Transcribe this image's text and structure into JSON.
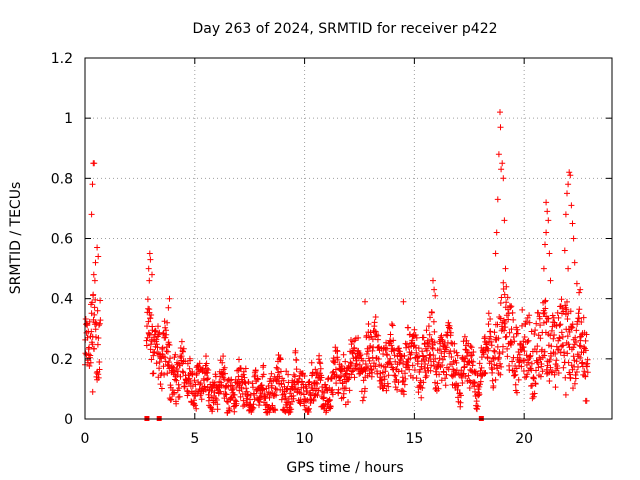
{
  "chart_data": {
    "type": "scatter",
    "title": "Day 263 of 2024, SRMTID for receiver p422",
    "xlabel": "GPS time / hours",
    "ylabel": "SRMTID / TECUs",
    "xlim": [
      0,
      24
    ],
    "ylim": [
      0,
      1.2
    ],
    "x_ticks": [
      0,
      5,
      10,
      15,
      20
    ],
    "x_tick_labels": [
      "0",
      "5",
      "10",
      "15",
      "20"
    ],
    "y_ticks": [
      0,
      0.2,
      0.4,
      0.6,
      0.8,
      1.0,
      1.2
    ],
    "y_tick_labels": [
      "0",
      "0.2",
      "0.4",
      "0.6",
      "0.8",
      "1",
      "1.2"
    ],
    "grid": true,
    "marker": "+",
    "color": "#ff0000",
    "series": [
      {
        "name": "SRMTID",
        "envelope": [
          {
            "t": 0.0,
            "level": 0.22,
            "spread": 0.09
          },
          {
            "t": 0.5,
            "level": 0.3,
            "spread": 0.12
          },
          {
            "t": 3.0,
            "level": 0.28,
            "spread": 0.09
          },
          {
            "t": 3.5,
            "level": 0.2,
            "spread": 0.1
          },
          {
            "t": 4.5,
            "level": 0.14,
            "spread": 0.07
          },
          {
            "t": 5.5,
            "level": 0.11,
            "spread": 0.06
          },
          {
            "t": 6.5,
            "level": 0.1,
            "spread": 0.06
          },
          {
            "t": 8.0,
            "level": 0.09,
            "spread": 0.06
          },
          {
            "t": 9.5,
            "level": 0.11,
            "spread": 0.07
          },
          {
            "t": 11.0,
            "level": 0.1,
            "spread": 0.06
          },
          {
            "t": 12.0,
            "level": 0.16,
            "spread": 0.08
          },
          {
            "t": 13.0,
            "level": 0.22,
            "spread": 0.09
          },
          {
            "t": 14.0,
            "level": 0.18,
            "spread": 0.08
          },
          {
            "t": 15.0,
            "level": 0.2,
            "spread": 0.08
          },
          {
            "t": 16.0,
            "level": 0.22,
            "spread": 0.1
          },
          {
            "t": 17.0,
            "level": 0.17,
            "spread": 0.08
          },
          {
            "t": 18.0,
            "level": 0.16,
            "spread": 0.07
          },
          {
            "t": 19.0,
            "level": 0.3,
            "spread": 0.13
          },
          {
            "t": 20.0,
            "level": 0.22,
            "spread": 0.1
          },
          {
            "t": 21.0,
            "level": 0.24,
            "spread": 0.12
          },
          {
            "t": 22.0,
            "level": 0.28,
            "spread": 0.14
          },
          {
            "t": 23.0,
            "level": 0.18,
            "spread": 0.09
          }
        ],
        "gaps": [
          [
            0.7,
            2.8
          ],
          [
            22.9,
            24.0
          ]
        ],
        "point_spacing_hours": 0.0125,
        "spikes": [
          {
            "x": 0.38,
            "y": 0.85
          },
          {
            "x": 0.42,
            "y": 0.85
          },
          {
            "x": 0.34,
            "y": 0.78
          },
          {
            "x": 0.3,
            "y": 0.68
          },
          {
            "x": 0.55,
            "y": 0.57
          },
          {
            "x": 0.48,
            "y": 0.52
          },
          {
            "x": 0.4,
            "y": 0.48
          },
          {
            "x": 0.45,
            "y": 0.46
          },
          {
            "x": 0.6,
            "y": 0.54
          },
          {
            "x": 0.35,
            "y": 0.09
          },
          {
            "x": 2.95,
            "y": 0.55
          },
          {
            "x": 2.98,
            "y": 0.53
          },
          {
            "x": 2.9,
            "y": 0.5
          },
          {
            "x": 3.05,
            "y": 0.48
          },
          {
            "x": 2.93,
            "y": 0.46
          },
          {
            "x": 3.85,
            "y": 0.4
          },
          {
            "x": 3.8,
            "y": 0.37
          },
          {
            "x": 15.85,
            "y": 0.46
          },
          {
            "x": 15.9,
            "y": 0.43
          },
          {
            "x": 15.95,
            "y": 0.41
          },
          {
            "x": 14.5,
            "y": 0.39
          },
          {
            "x": 12.75,
            "y": 0.39
          },
          {
            "x": 18.9,
            "y": 1.02
          },
          {
            "x": 18.92,
            "y": 0.97
          },
          {
            "x": 18.85,
            "y": 0.88
          },
          {
            "x": 19.0,
            "y": 0.85
          },
          {
            "x": 18.95,
            "y": 0.83
          },
          {
            "x": 19.05,
            "y": 0.8
          },
          {
            "x": 18.8,
            "y": 0.73
          },
          {
            "x": 19.1,
            "y": 0.66
          },
          {
            "x": 18.75,
            "y": 0.62
          },
          {
            "x": 18.7,
            "y": 0.55
          },
          {
            "x": 19.15,
            "y": 0.5
          },
          {
            "x": 21.0,
            "y": 0.72
          },
          {
            "x": 21.05,
            "y": 0.69
          },
          {
            "x": 21.1,
            "y": 0.66
          },
          {
            "x": 21.0,
            "y": 0.62
          },
          {
            "x": 20.95,
            "y": 0.58
          },
          {
            "x": 21.15,
            "y": 0.55
          },
          {
            "x": 20.9,
            "y": 0.5
          },
          {
            "x": 21.2,
            "y": 0.46
          },
          {
            "x": 22.05,
            "y": 0.82
          },
          {
            "x": 22.1,
            "y": 0.81
          },
          {
            "x": 22.0,
            "y": 0.78
          },
          {
            "x": 21.95,
            "y": 0.75
          },
          {
            "x": 22.15,
            "y": 0.71
          },
          {
            "x": 21.9,
            "y": 0.68
          },
          {
            "x": 22.2,
            "y": 0.65
          },
          {
            "x": 22.25,
            "y": 0.6
          },
          {
            "x": 21.85,
            "y": 0.56
          },
          {
            "x": 22.3,
            "y": 0.52
          },
          {
            "x": 22.0,
            "y": 0.5
          },
          {
            "x": 22.4,
            "y": 0.45
          },
          {
            "x": 22.5,
            "y": 0.42
          },
          {
            "x": 22.55,
            "y": 0.43
          },
          {
            "x": 22.8,
            "y": 0.06
          },
          {
            "x": 22.85,
            "y": 0.06
          },
          {
            "x": 21.9,
            "y": 0.08
          }
        ],
        "zero_markers": [
          2.82,
          3.38,
          18.05
        ]
      }
    ]
  }
}
